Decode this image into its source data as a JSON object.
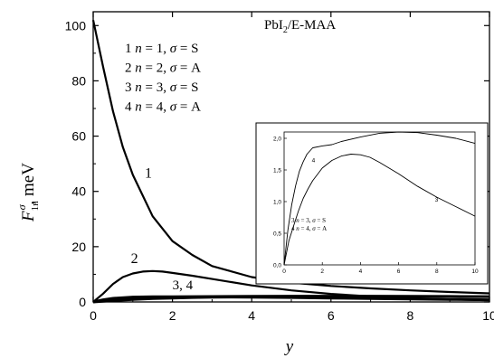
{
  "chart_data": [
    {
      "type": "line",
      "title": "PbI2/E-MAA",
      "title_parts": {
        "base": "PbI",
        "sub": "2",
        "rest": "/E-MAA"
      },
      "xlabel": "y",
      "ylabel_parts": {
        "main": "F",
        "sup": "σ",
        "sub": "1n",
        "unit": ", meV"
      },
      "xlim": [
        0,
        10
      ],
      "ylim": [
        0,
        105
      ],
      "xticks": [
        0,
        2,
        4,
        6,
        8,
        10
      ],
      "yticks": [
        0,
        20,
        40,
        60,
        80,
        100
      ],
      "grid": false,
      "legend": {
        "position": "top-left",
        "entries": [
          {
            "num": "1",
            "n": "1",
            "sigma": "S"
          },
          {
            "num": "2",
            "n": "2",
            "sigma": "A"
          },
          {
            "num": "3",
            "n": "3",
            "sigma": "S"
          },
          {
            "num": "4",
            "n": "4",
            "sigma": "A"
          }
        ]
      },
      "series": [
        {
          "name": "1",
          "label_pos": [
            1.3,
            45
          ],
          "x": [
            0,
            0.25,
            0.5,
            0.75,
            1,
            1.5,
            2,
            2.5,
            3,
            4,
            5,
            6,
            7,
            8,
            9,
            10
          ],
          "y": [
            102,
            85,
            69,
            56,
            46,
            31,
            22,
            17,
            13,
            9,
            7,
            5.8,
            4.9,
            4.2,
            3.6,
            3.1
          ]
        },
        {
          "name": "2",
          "label_pos": [
            0.95,
            14
          ],
          "x": [
            0,
            0.25,
            0.5,
            0.75,
            1,
            1.25,
            1.5,
            1.75,
            2,
            2.5,
            3,
            4,
            5,
            6,
            7,
            8,
            9,
            10
          ],
          "y": [
            0,
            3,
            6.5,
            9,
            10.3,
            11,
            11.2,
            11,
            10.5,
            9.5,
            8.3,
            6,
            4.2,
            2.9,
            2,
            1.4,
            0.9,
            0.6
          ]
        },
        {
          "name": "3",
          "x": [
            0,
            0.5,
            1,
            1.5,
            2,
            2.5,
            3,
            3.5,
            4,
            5,
            6,
            7,
            8,
            9,
            10
          ],
          "y": [
            0,
            0.5,
            0.9,
            1.2,
            1.4,
            1.6,
            1.7,
            1.75,
            1.72,
            1.6,
            1.4,
            1.2,
            1.05,
            0.9,
            0.77
          ]
        },
        {
          "name": "4",
          "x": [
            0,
            0.25,
            0.5,
            1,
            1.5,
            2,
            3,
            4,
            5,
            6,
            7,
            8,
            9,
            10
          ],
          "y": [
            0,
            0.8,
            1.3,
            1.75,
            1.88,
            1.9,
            1.97,
            2.03,
            2.08,
            2.1,
            2.08,
            2.05,
            2.0,
            1.92
          ]
        }
      ],
      "annotation": {
        "text": "3, 4",
        "pos": [
          2.0,
          4.5
        ]
      }
    },
    {
      "type": "line",
      "title": "",
      "xlim": [
        0,
        10
      ],
      "ylim": [
        0,
        2.1
      ],
      "xticks": [
        0,
        2,
        4,
        6,
        8,
        10
      ],
      "yticks": [
        0.0,
        0.5,
        1.0,
        1.5,
        2.0
      ],
      "ytick_labels": [
        "0,0",
        "0,5",
        "1,0",
        "1,5",
        "2,0"
      ],
      "grid": false,
      "legend": {
        "position": "lower-left",
        "entries": [
          {
            "num": "3",
            "n": "3",
            "sigma": "S"
          },
          {
            "num": "4",
            "n": "4",
            "sigma": "A"
          }
        ]
      },
      "series": [
        {
          "name": "3",
          "label_pos": [
            7.9,
            1.0
          ],
          "x": [
            0,
            0.25,
            0.5,
            0.75,
            1,
            1.25,
            1.5,
            2,
            2.5,
            3,
            3.5,
            4,
            4.5,
            5,
            6,
            7,
            8,
            9,
            10
          ],
          "y": [
            0,
            0.38,
            0.62,
            0.85,
            1.05,
            1.2,
            1.33,
            1.53,
            1.65,
            1.72,
            1.75,
            1.74,
            1.7,
            1.62,
            1.44,
            1.24,
            1.07,
            0.92,
            0.77
          ]
        },
        {
          "name": "4",
          "label_pos": [
            1.45,
            1.62
          ],
          "x": [
            0,
            0.2,
            0.4,
            0.6,
            0.8,
            1,
            1.2,
            1.5,
            2,
            2.5,
            3,
            4,
            5,
            6,
            7,
            8,
            9,
            10
          ],
          "y": [
            0,
            0.55,
            0.95,
            1.25,
            1.48,
            1.63,
            1.75,
            1.85,
            1.88,
            1.9,
            1.95,
            2.02,
            2.08,
            2.1,
            2.09,
            2.05,
            2.0,
            1.92
          ]
        }
      ]
    }
  ]
}
